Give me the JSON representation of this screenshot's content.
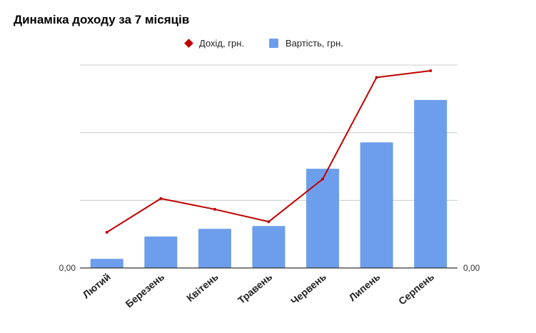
{
  "chart_data": {
    "type": "bar",
    "title": "Динаміка доходу за 7 місяців",
    "categories": [
      "Лютий",
      "Березень",
      "Квітень",
      "Травень",
      "Червень",
      "Липень",
      "Серпень"
    ],
    "series": [
      {
        "name": "Вартість, грн.",
        "type": "bar",
        "axis": "left",
        "color": "#6d9eeb",
        "values": [
          4.5,
          15.5,
          19.3,
          20.7,
          48.9,
          61.9,
          82.8
        ]
      },
      {
        "name": "Дохід, грн.",
        "type": "line",
        "axis": "right",
        "color": "#c00000",
        "values": [
          17.6,
          34.2,
          28.9,
          22.8,
          43.8,
          93.9,
          97.2
        ]
      }
    ],
    "left_axis": {
      "tick_labels": [
        "0,00"
      ],
      "ylim": [
        0,
        100
      ]
    },
    "right_axis": {
      "tick_labels": [
        "0,00"
      ],
      "ylim": [
        0,
        100
      ]
    },
    "grid": true,
    "legend_position": "top"
  }
}
